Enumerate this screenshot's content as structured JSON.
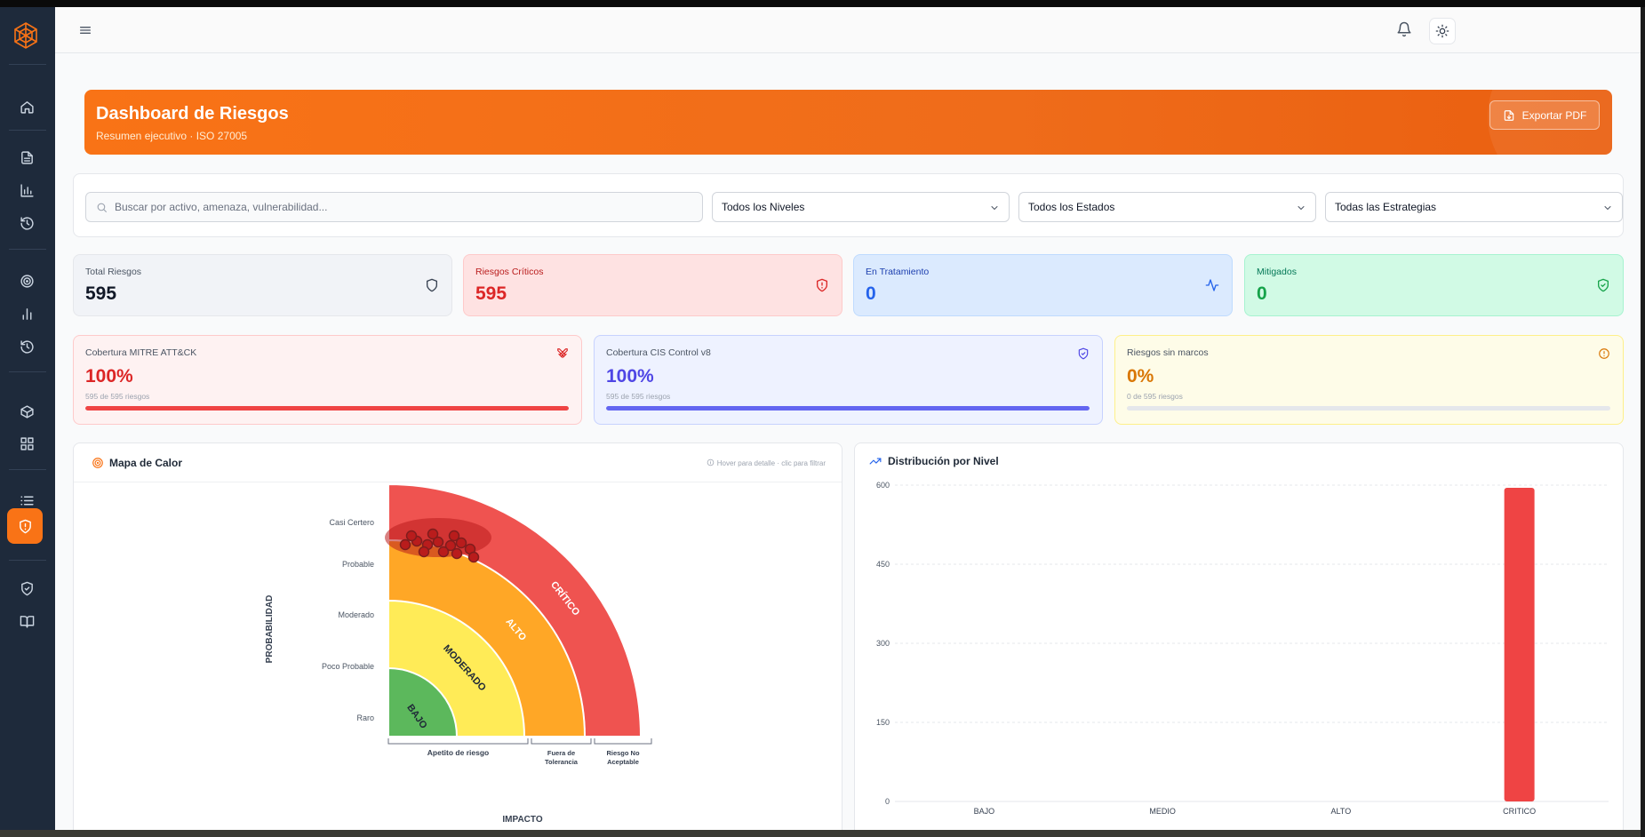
{
  "banner": {
    "title": "Dashboard de Riesgos",
    "subtitle": "Resumen ejecutivo · ISO 27005",
    "export_label": "Exportar PDF"
  },
  "filters": {
    "search_placeholder": "Buscar por activo, amenaza, vulnerabilidad...",
    "level": "Todos los Niveles",
    "status": "Todos los Estados",
    "strategy": "Todas las Estrategias"
  },
  "stats": [
    {
      "label": "Total Riesgos",
      "value": "595",
      "icon": "shield-icon",
      "color": "#111827"
    },
    {
      "label": "Riesgos Críticos",
      "value": "595",
      "icon": "shield-alert-icon",
      "color": "#dc2626"
    },
    {
      "label": "En Tratamiento",
      "value": "0",
      "icon": "activity-icon",
      "color": "#2563eb"
    },
    {
      "label": "Mitigados",
      "value": "0",
      "icon": "shield-check-icon",
      "color": "#16a34a"
    }
  ],
  "coverage": [
    {
      "label": "Cobertura MITRE ATT&CK",
      "value": "100%",
      "sub": "595 de 595 riesgos",
      "fraction": 1.0,
      "color": "#ef4444",
      "icon": "crossed-swords-icon"
    },
    {
      "label": "Cobertura CIS Control v8",
      "value": "100%",
      "sub": "595 de 595 riesgos",
      "fraction": 1.0,
      "color": "#6366f1",
      "icon": "shield-check-icon"
    },
    {
      "label": "Riesgos sin marcos",
      "value": "0%",
      "sub": "0 de 595 riesgos",
      "fraction": 0.0,
      "color": "#f59e0b",
      "icon": "alert-circle-icon"
    }
  ],
  "heatmap": {
    "title": "Mapa de Calor",
    "hint": "Hover para detalle · clic para filtrar",
    "y_axis_label": "PROBABILIDAD",
    "x_axis_label": "IMPACTO",
    "probability_labels": [
      "Casi Certero",
      "Probable",
      "Moderado",
      "Poco Probable",
      "Raro"
    ],
    "zones": [
      "BAJO",
      "MODERADO",
      "ALTO",
      "CRÍTICO"
    ],
    "impact_groups": [
      "Apetito de riesgo",
      "Fuera de Tolerancia",
      "Riesgo No Aceptable"
    ],
    "impact_group_lines": [
      [
        "Apetito de riesgo"
      ],
      [
        "Fuera de",
        "Tolerancia"
      ],
      [
        "Riesgo No",
        "Aceptable"
      ]
    ]
  },
  "chart_data": {
    "type": "bar",
    "title": "Distribución por Nivel",
    "categories": [
      "BAJO",
      "MEDIO",
      "ALTO",
      "CRITICO"
    ],
    "values": [
      0,
      0,
      0,
      595
    ],
    "colors": [
      "#22c55e",
      "#eab308",
      "#f97316",
      "#ef4444"
    ],
    "ylim": [
      0,
      600
    ],
    "yticks": [
      0,
      150,
      300,
      450,
      600
    ],
    "grid": true
  }
}
